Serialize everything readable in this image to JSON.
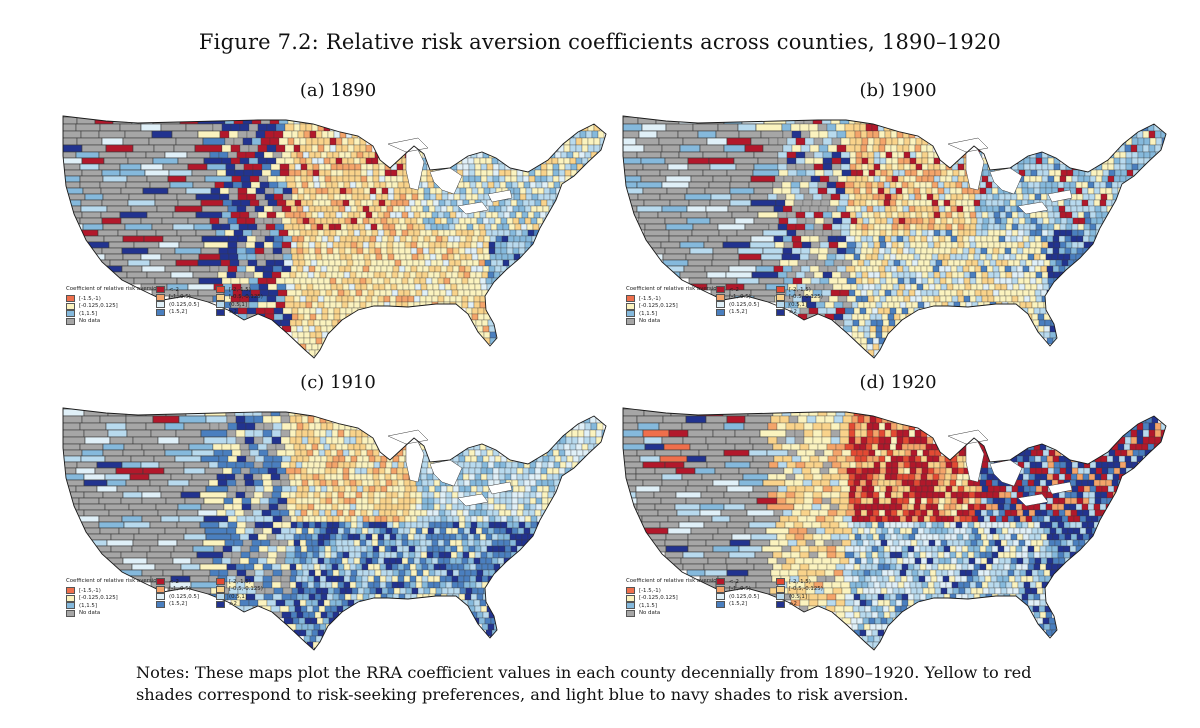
{
  "figure": {
    "title": "Figure 7.2: Relative risk aversion coefficients across counties, 1890–1920",
    "notes": "Notes: These maps plot the RRA coefficient values in each county decennially from 1890–1920. Yellow to red shades correspond to risk-seeking preferences, and light blue to navy shades to risk aversion."
  },
  "legend": {
    "title": "Coefficient of relative risk aversion",
    "items": [
      {
        "label": "<-2",
        "color": "#b2182b"
      },
      {
        "label": "[-2,-1.5)",
        "color": "#e34a33"
      },
      {
        "label": "[-1.5,-1)",
        "color": "#ef6f4c"
      },
      {
        "label": "[-1,-0.5)",
        "color": "#f4a46a"
      },
      {
        "label": "[-0.5,-0.125)",
        "color": "#f9d38b"
      },
      {
        "label": "[-0.125,0.125]",
        "color": "#fbf3bf"
      },
      {
        "label": "(0.125,0.5]",
        "color": "#e0f0f8"
      },
      {
        "label": "(0.5,1]",
        "color": "#b8daee"
      },
      {
        "label": "(1,1.5]",
        "color": "#85b9dc"
      },
      {
        "label": "(1.5,2]",
        "color": "#4a7fbf"
      },
      {
        "label": ">2",
        "color": "#22338f"
      },
      {
        "label": "No data",
        "color": "#a6a6a6"
      }
    ]
  },
  "panels": [
    {
      "label": "(a) 1890",
      "year": 1890
    },
    {
      "label": "(b) 1900",
      "year": 1900
    },
    {
      "label": "(c) 1910",
      "year": 1910
    },
    {
      "label": "(d) 1920",
      "year": 1920
    }
  ]
}
